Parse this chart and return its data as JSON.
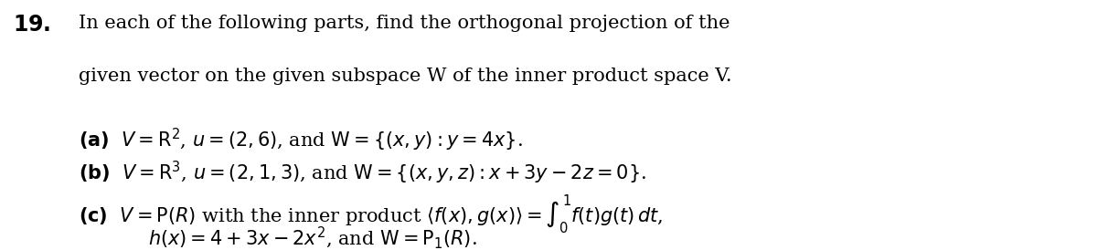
{
  "background_color": "#ffffff",
  "fig_width": 12.0,
  "fig_height": 2.74,
  "dpi": 100,
  "number": "19.",
  "intro_line1": "In each of the following parts, find the orthogonal projection of the",
  "intro_line2": "given vector on the given subspace W of the inner product space V.",
  "part_a": "(\\textbf{a})\\;\\; V = \\mathbb{R}^2,\\; u = (2, 6),\\; \\text{and}\\; W = \\{(x, y): y = 4x\\}.",
  "part_b": "(\\textbf{b})\\;\\; V = \\mathbb{R}^3,\\; u = (2, 1, 3),\\; \\text{and}\\; W = \\{(x, y, z): x + 3y - 2z = 0\\}.",
  "part_c1": "(\\textbf{c})\\;\\; V = P(R)\\; \\text{with the inner product}\\; \\langle f(x), g(x) \\rangle = \\int_0^1 f(t)g(t)\\, dt,",
  "part_c2": "\\quad\\quad\\quad h(x) = 4 + 3x - 2x^2,\\; \\text{and}\\; W = P_1(R).",
  "text_color": "#000000",
  "number_fontsize": 17,
  "body_fontsize": 15,
  "parts_fontsize": 15
}
